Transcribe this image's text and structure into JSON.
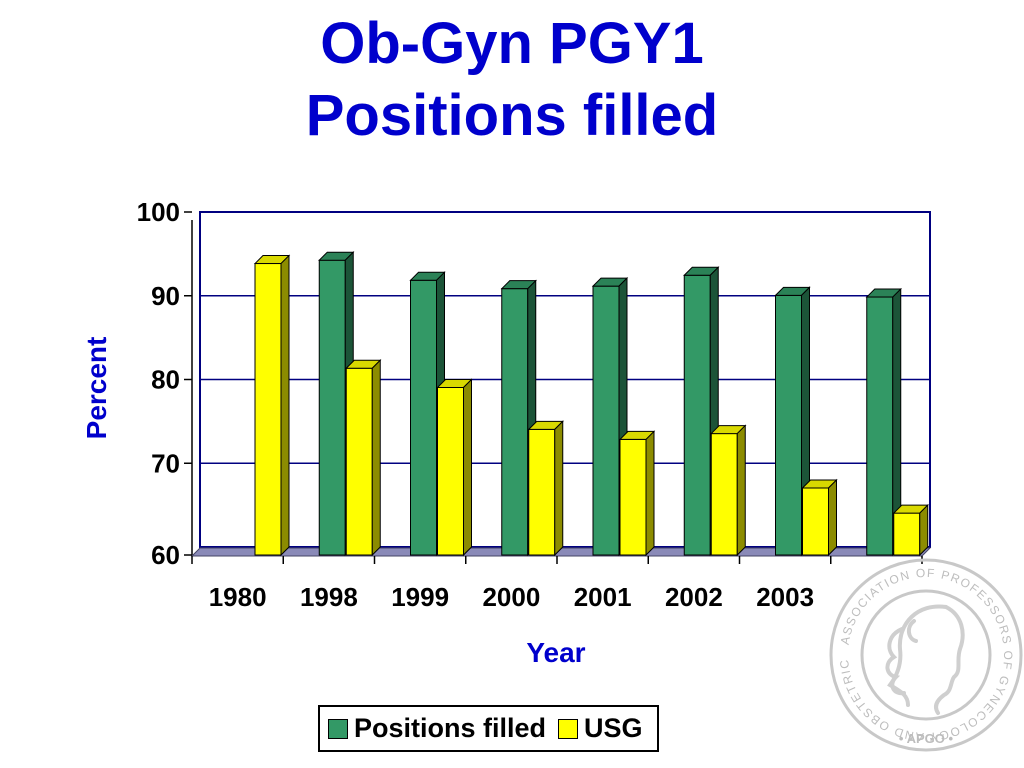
{
  "title": {
    "line1": "Ob-Gyn PGY1",
    "line2": "Positions filled"
  },
  "colors": {
    "title": "#0000cc",
    "positions_filled": "#339966",
    "usg": "#ffff00",
    "gridline": "#000080",
    "floor": "#8a8ab8"
  },
  "chart_data": {
    "type": "bar",
    "title": "",
    "xlabel": "Year",
    "ylabel": "Percent",
    "ylim": [
      60,
      100
    ],
    "yticks": [
      60,
      70,
      80,
      90,
      100
    ],
    "categories": [
      "1980",
      "1998",
      "1999",
      "2000",
      "2001",
      "2002",
      "2003",
      ""
    ],
    "series": [
      {
        "name": "Positions filled",
        "color": "#339966",
        "values": [
          null,
          95.2,
          92.8,
          91.8,
          92.1,
          93.4,
          91.0,
          90.8
        ]
      },
      {
        "name": "USG",
        "color": "#ffff00",
        "values": [
          94.8,
          82.3,
          80.0,
          75.0,
          73.8,
          74.5,
          68.0,
          65.0
        ]
      }
    ],
    "grid": true,
    "legend_position": "bottom",
    "style": "3d-clustered-column"
  },
  "legend": {
    "items": [
      {
        "label": "Positions filled"
      },
      {
        "label": "USG"
      }
    ]
  },
  "seal": {
    "ring_text": "ASSOCIATION OF PROFESSORS OF GYNECOLOGY AND OBSTETRICS",
    "bottom_text": "• APGO •"
  }
}
